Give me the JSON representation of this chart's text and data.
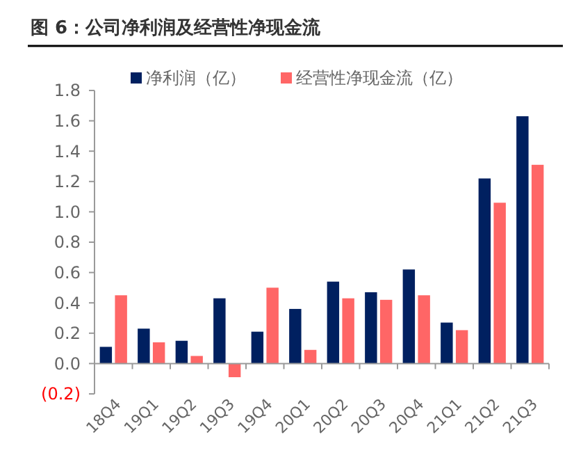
{
  "chart_data": {
    "type": "bar",
    "title": "图 6：公司净利润及经营性净现金流",
    "categories": [
      "18Q4",
      "19Q1",
      "19Q2",
      "19Q3",
      "19Q4",
      "20Q1",
      "20Q2",
      "20Q3",
      "20Q4",
      "21Q1",
      "21Q2",
      "21Q3"
    ],
    "series": [
      {
        "name": "净利润（亿）",
        "color": "#002060",
        "values": [
          0.11,
          0.23,
          0.15,
          0.43,
          0.21,
          0.36,
          0.54,
          0.47,
          0.62,
          0.27,
          1.22,
          1.63
        ]
      },
      {
        "name": "经营性净现金流（亿）",
        "color": "#ff6666",
        "values": [
          0.45,
          0.14,
          0.05,
          -0.09,
          0.5,
          0.09,
          0.43,
          0.42,
          0.45,
          0.22,
          1.06,
          1.31
        ]
      }
    ],
    "ylim": [
      -0.2,
      1.8
    ],
    "yticks": [
      {
        "value": -0.2,
        "label": "(0.2)"
      },
      {
        "value": 0,
        "label": "0.0"
      },
      {
        "value": 0.2,
        "label": "0.2"
      },
      {
        "value": 0.4,
        "label": "0.4"
      },
      {
        "value": 0.6,
        "label": "0.6"
      },
      {
        "value": 0.8,
        "label": "0.8"
      },
      {
        "value": 1,
        "label": "1.0"
      },
      {
        "value": 1.2,
        "label": "1.2"
      },
      {
        "value": 1.4,
        "label": "1.4"
      },
      {
        "value": 1.6,
        "label": "1.6"
      },
      {
        "value": 1.8,
        "label": "1.8"
      }
    ],
    "grid": false,
    "legend": "top"
  }
}
